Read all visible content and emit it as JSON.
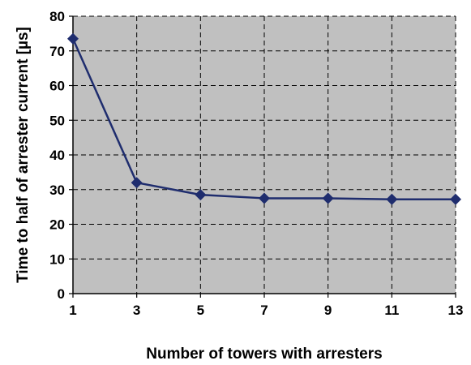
{
  "chart_data": {
    "type": "line",
    "xlabel": "Number of towers with arresters",
    "ylabel": "Time to half of arrester current [µs]",
    "x": [
      1,
      3,
      5,
      7,
      9,
      11,
      13
    ],
    "series": [
      {
        "values": [
          73.5,
          32,
          28.5,
          27.5,
          27.5,
          27.2,
          27.2
        ]
      }
    ],
    "xticks": [
      "1",
      "3",
      "5",
      "7",
      "9",
      "11",
      "13"
    ],
    "yticks": [
      "0",
      "10",
      "20",
      "30",
      "40",
      "50",
      "60",
      "70",
      "80"
    ],
    "xlim": [
      1,
      13
    ],
    "ylim": [
      0,
      80
    ],
    "grid": true,
    "marker": "diamond",
    "colors": {
      "plot_background": "#c0c0c0",
      "line": "#1f2d6e",
      "grid": "#000000"
    }
  }
}
